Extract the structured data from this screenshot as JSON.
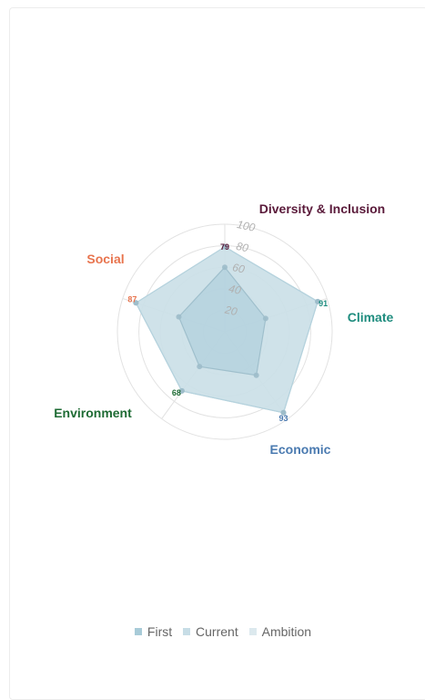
{
  "chart_data": {
    "type": "radar",
    "axes": [
      "Diversity & Inclusion",
      "Climate",
      "Economic",
      "Environment",
      "Social"
    ],
    "axis_colors": [
      "#5a1a3a",
      "#1e8c7e",
      "#4a7ab0",
      "#1e6b34",
      "#e8744e"
    ],
    "r_ticks": [
      "20",
      "40",
      "60",
      "80",
      "100"
    ],
    "r_range": [
      0,
      100
    ],
    "grid": "circular",
    "legend_position": "bottom",
    "series": [
      {
        "name": "First",
        "color": "#a8cbd8",
        "values": [
          60,
          40,
          50,
          40,
          45
        ]
      },
      {
        "name": "Current",
        "color": "#c7dde6",
        "values": [
          79,
          91,
          93,
          68,
          87
        ]
      },
      {
        "name": "Ambition",
        "color": "#dce9ee",
        "values": [
          79,
          91,
          93,
          68,
          87
        ]
      }
    ],
    "data_labels": [
      "79",
      "91",
      "93",
      "68",
      "87"
    ],
    "data_label_colors": [
      "#5a1a3a",
      "#1e8c7e",
      "#4a7ab0",
      "#1e6b34",
      "#e8744e"
    ]
  },
  "legend": {
    "items": [
      "First",
      "Current",
      "Ambition"
    ],
    "swatch_colors": [
      "#a8cbd8",
      "#c7dde6",
      "#dce9ee"
    ]
  }
}
